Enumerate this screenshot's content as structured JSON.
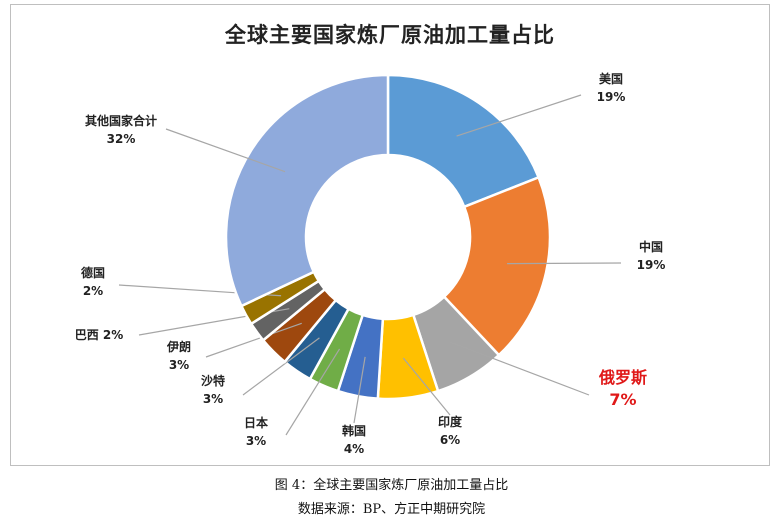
{
  "chart_data": {
    "type": "pie",
    "subtype": "donut",
    "title": "全球主要国家炼厂原油加工量占比",
    "slices": [
      {
        "name": "美国",
        "label": "19%",
        "value": 19,
        "color": "#5b9bd5"
      },
      {
        "name": "中国",
        "label": "19%",
        "value": 19,
        "color": "#ed7d31"
      },
      {
        "name": "俄罗斯",
        "label": "7%",
        "value": 7,
        "color": "#a5a5a5",
        "highlight": true,
        "label_color": "#e01919"
      },
      {
        "name": "印度",
        "label": "6%",
        "value": 6,
        "color": "#ffc000"
      },
      {
        "name": "韩国",
        "label": "4%",
        "value": 4,
        "color": "#4472c4"
      },
      {
        "name": "日本",
        "label": "3%",
        "value": 3,
        "color": "#70ad47"
      },
      {
        "name": "沙特",
        "label": "3%",
        "value": 3,
        "color": "#255e91"
      },
      {
        "name": "伊朗",
        "label": "3%",
        "value": 3,
        "color": "#9e480e"
      },
      {
        "name": "巴西",
        "label": "2%",
        "value": 2,
        "color": "#636363"
      },
      {
        "name": "德国",
        "label": "2%",
        "value": 2,
        "color": "#997300"
      },
      {
        "name": "其他国家合计",
        "label": "32%",
        "value": 32,
        "color": "#8faadc"
      }
    ]
  },
  "caption": {
    "figure": "图 4：全球主要国家炼厂原油加工量占比",
    "source": "数据来源：BP、方正中期研究院"
  }
}
